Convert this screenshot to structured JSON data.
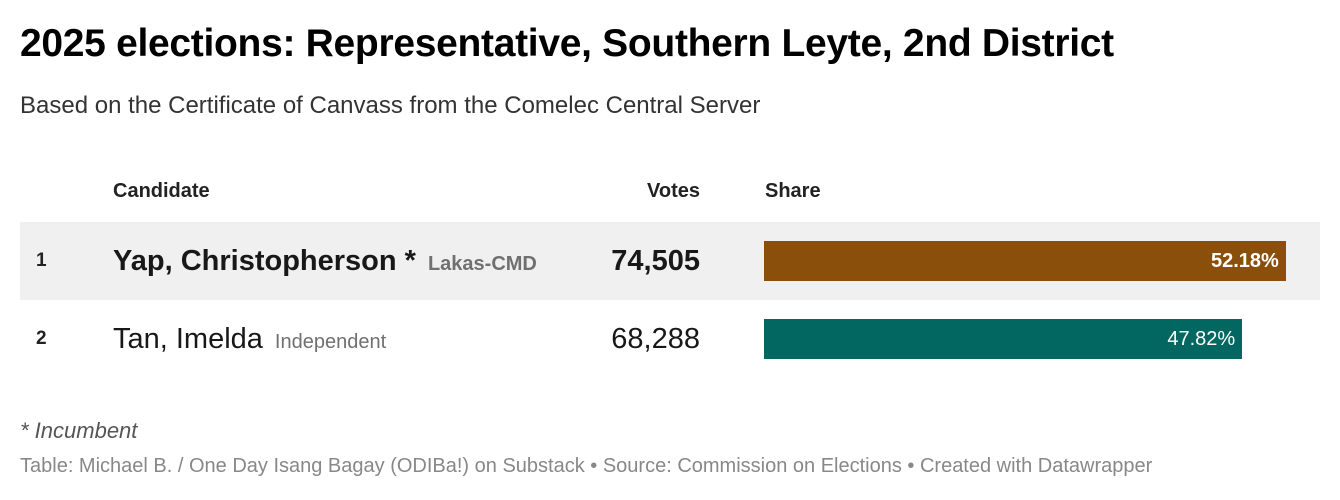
{
  "title": "2025 elections: Representative, Southern Leyte, 2nd District",
  "subtitle": "Based on the Certificate of Canvass from the Comelec Central Server",
  "columns": {
    "candidate": "Candidate",
    "votes": "Votes",
    "share": "Share"
  },
  "rows": [
    {
      "rank": "1",
      "name": "Yap, Christopherson *",
      "party": "Lakas-CMD",
      "votes": "74,505",
      "share_label": "52.18%",
      "share": 52.18,
      "color": "#8a4f0b",
      "highlight": true
    },
    {
      "rank": "2",
      "name": "Tan, Imelda",
      "party": "Independent",
      "votes": "68,288",
      "share_label": "47.82%",
      "share": 47.82,
      "color": "#016760",
      "highlight": false
    }
  ],
  "note": "* Incumbent",
  "source": "Table: Michael B. / One Day Isang Bagay (ODIBa!) on Substack • Source: Commission on Elections • Created with Datawrapper",
  "chart_data": {
    "type": "table",
    "title": "2025 elections: Representative, Southern Leyte, 2nd District",
    "subtitle": "Based on the Certificate of Canvass from the Comelec Central Server",
    "columns": [
      "Candidate",
      "Votes",
      "Share"
    ],
    "categories": [
      "Yap, Christopherson *",
      "Tan, Imelda"
    ],
    "parties": [
      "Lakas-CMD",
      "Independent"
    ],
    "series": [
      {
        "name": "Votes",
        "values": [
          74505,
          68288
        ]
      },
      {
        "name": "Share",
        "values": [
          52.18,
          47.82
        ]
      }
    ]
  }
}
